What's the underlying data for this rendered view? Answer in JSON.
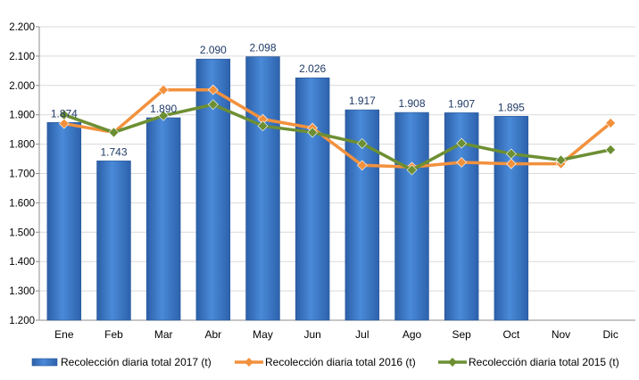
{
  "chart_data": {
    "type": "bar",
    "categories": [
      "Ene",
      "Feb",
      "Mar",
      "Abr",
      "May",
      "Jun",
      "Jul",
      "Ago",
      "Sep",
      "Oct",
      "Nov",
      "Dic"
    ],
    "ylim": [
      1200,
      2200
    ],
    "yticks": [
      1200,
      1300,
      1400,
      1500,
      1600,
      1700,
      1800,
      1900,
      2000,
      2100,
      2200
    ],
    "ytick_labels": [
      "1.200",
      "1.300",
      "1.400",
      "1.500",
      "1.600",
      "1.700",
      "1.800",
      "1.900",
      "2.000",
      "2.100",
      "2.200"
    ],
    "grid": true,
    "legend_position": "bottom",
    "series": [
      {
        "name": "Recolección diaria total 2017 (t)",
        "type": "bar",
        "color": "#3f7fd0",
        "values": [
          1874,
          1743,
          1890,
          2090,
          2098,
          2026,
          1917,
          1908,
          1907,
          1895,
          null,
          null
        ],
        "data_labels": [
          "1.874",
          "1.743",
          "1.890",
          "2.090",
          "2.098",
          "2.026",
          "1.917",
          "1.908",
          "1.907",
          "1.895",
          "",
          ""
        ]
      },
      {
        "name": "Recolección diaria total 2016 (t)",
        "type": "line",
        "color": "#f2913d",
        "values": [
          1870,
          1840,
          1985,
          1985,
          1885,
          1855,
          1728,
          1722,
          1738,
          1733,
          1733,
          1872
        ]
      },
      {
        "name": "Recolección diaria total 2015 (t)",
        "type": "line",
        "color": "#6d8f33",
        "values": [
          1900,
          1840,
          1897,
          1935,
          1862,
          1840,
          1802,
          1712,
          1803,
          1767,
          1746,
          1781
        ]
      }
    ]
  }
}
